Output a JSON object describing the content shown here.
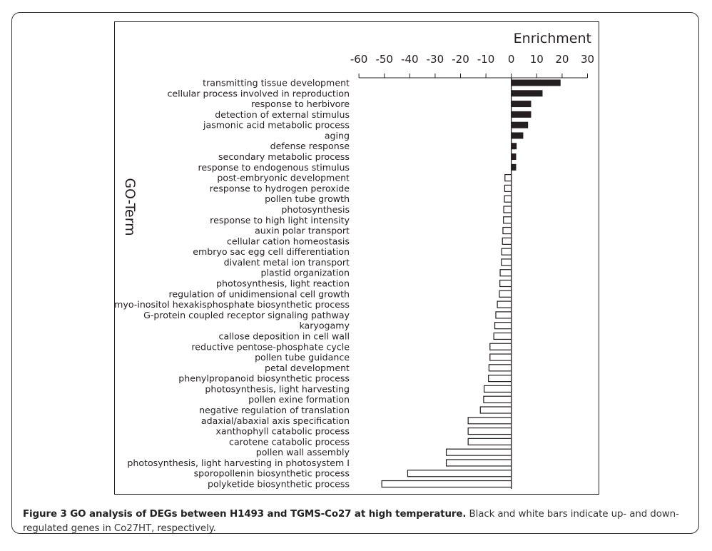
{
  "chart_data": {
    "type": "bar",
    "orientation": "horizontal",
    "xlabel": "Enrichment",
    "ylabel": "GO-Term",
    "xlim": [
      -60,
      30
    ],
    "xticks": [
      -60,
      -50,
      -40,
      -30,
      -20,
      -10,
      0,
      10,
      20,
      30
    ],
    "grid": false,
    "legend": "none",
    "categories": [
      "transmitting tissue development",
      "cellular process involved in reproduction",
      "response to herbivore",
      "detection of external stimulus",
      "jasmonic acid metabolic process",
      "aging",
      "defense response",
      "secondary metabolic process",
      "response to endogenous stimulus",
      "post-embryonic development",
      "response to hydrogen peroxide",
      "pollen tube growth",
      "photosynthesis",
      "response to high light intensity",
      "auxin polar transport",
      "cellular cation homeostasis",
      "embryo sac egg cell differentiation",
      "divalent metal ion transport",
      "plastid organization",
      "photosynthesis, light reaction",
      "regulation of unidimensional cell growth",
      "myo-inositol hexakisphosphate biosynthetic process",
      "G-protein coupled receptor signaling pathway",
      "karyogamy",
      "callose deposition in cell wall",
      "reductive pentose-phosphate cycle",
      "pollen tube guidance",
      "petal development",
      "phenylpropanoid biosynthetic process",
      "photosynthesis, light harvesting",
      "pollen exine formation",
      "negative regulation of translation",
      "adaxial/abaxial axis specification",
      "xanthophyll catabolic process",
      "carotene catabolic process",
      "pollen wall assembly",
      "photosynthesis, light harvesting in photosystem I",
      "sporopollenin biosynthetic process",
      "polyketide biosynthetic process"
    ],
    "values": [
      19.4,
      12.3,
      7.8,
      7.8,
      6.6,
      4.7,
      2.1,
      1.9,
      1.9,
      -2.5,
      -2.6,
      -2.7,
      -3.0,
      -3.1,
      -3.3,
      -3.5,
      -3.8,
      -3.9,
      -4.4,
      -4.5,
      -4.7,
      -5.5,
      -6.1,
      -6.5,
      -6.9,
      -8.4,
      -8.4,
      -8.8,
      -9.0,
      -10.7,
      -10.9,
      -12.2,
      -17.0,
      -17.0,
      -17.0,
      -25.6,
      -25.6,
      -40.8,
      -51.0
    ],
    "series_colors": {
      "up": "#231f20",
      "down": "#ffffff"
    }
  },
  "caption": {
    "title": "Figure 3 GO analysis of DEGs between H1493 and TGMS-Co27 at high temperature.",
    "text": " Black and white bars indicate up- and down-regulated genes in Co27HT, respectively."
  }
}
